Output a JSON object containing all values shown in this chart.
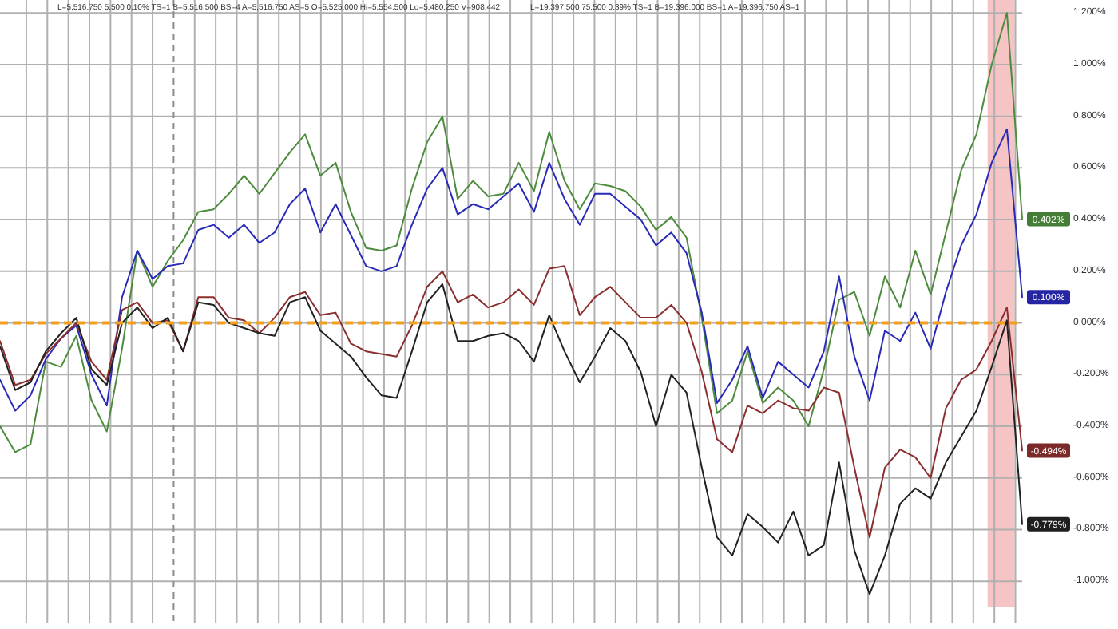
{
  "chart_data": {
    "type": "line",
    "annotations": [
      "L=5,516.750 5.500 0.10% TS=1 B=5,516.500 BS=4 A=5,516.750 AS=5 O=5,525.000 Hi=5,554.500 Lo=5,480.250 V=908,442",
      "L=19,397.500 75.500 0.39% TS=1 B=19,396.000 BS=1 A=19,396.750 AS=1"
    ],
    "categories": [
      null,
      null,
      null,
      null,
      null,
      null,
      null,
      null,
      null,
      null,
      null,
      null,
      null,
      null,
      null,
      null,
      null,
      null,
      null,
      null,
      null,
      null,
      null,
      null,
      null,
      null,
      null,
      null,
      null,
      null,
      null,
      null,
      null,
      null,
      null,
      null,
      null,
      null,
      null,
      null,
      null,
      null,
      null,
      null,
      null,
      null,
      null,
      null,
      null,
      null,
      null,
      null,
      null,
      null,
      null,
      null,
      null,
      null,
      null,
      null,
      null,
      null,
      null,
      null,
      null,
      null,
      null,
      null
    ],
    "ylim": [
      -1.16,
      1.25
    ],
    "yticks": [
      {
        "value": 1.2,
        "label": "1.200%"
      },
      {
        "value": 1.0,
        "label": "1.000%"
      },
      {
        "value": 0.8,
        "label": "0.800%"
      },
      {
        "value": 0.6,
        "label": "0.600%"
      },
      {
        "value": 0.4,
        "label": "0.400%"
      },
      {
        "value": 0.2,
        "label": "0.200%"
      },
      {
        "value": 0,
        "label": "0.000%"
      },
      {
        "value": -0.2,
        "label": "-0.200%"
      },
      {
        "value": -0.4,
        "label": "-0.400%"
      },
      {
        "value": -0.6,
        "label": "-0.600%"
      },
      {
        "value": -0.8,
        "label": "-0.800%"
      },
      {
        "value": -1.0,
        "label": "-1.000%"
      }
    ],
    "tick_labels": "y",
    "grid": true,
    "marker": "none",
    "line_style": "solid",
    "ref_lines": [
      {
        "axis": "y",
        "value": 0,
        "color": "#f0a020",
        "line_style": "dashed"
      }
    ],
    "series": [
      {
        "color": "#4c8c3c",
        "values": [
          -0.4,
          -0.5,
          -0.47,
          -0.15,
          -0.17,
          -0.05,
          -0.3,
          -0.42,
          -0.1,
          0.28,
          0.14,
          0.24,
          0.32,
          0.43,
          0.44,
          0.5,
          0.57,
          0.5,
          0.58,
          0.66,
          0.73,
          0.57,
          0.62,
          0.43,
          0.29,
          0.28,
          0.3,
          0.52,
          0.7,
          0.8,
          0.48,
          0.55,
          0.49,
          0.5,
          0.62,
          0.51,
          0.74,
          0.55,
          0.44,
          0.54,
          0.53,
          0.51,
          0.45,
          0.36,
          0.41,
          0.33,
          0.02,
          -0.35,
          -0.3,
          -0.11,
          -0.31,
          -0.25,
          -0.3,
          -0.4,
          -0.18,
          0.09,
          0.12,
          -0.05,
          0.18,
          0.06,
          0.28,
          0.11,
          0.35,
          0.59,
          0.73,
          1.0,
          1.2,
          0.402
        ],
        "value_labels": [
          null,
          null,
          null,
          null,
          null,
          null,
          null,
          null,
          null,
          null,
          null,
          null,
          null,
          null,
          null,
          null,
          null,
          null,
          null,
          null,
          null,
          null,
          null,
          null,
          null,
          null,
          null,
          null,
          null,
          null,
          null,
          null,
          null,
          null,
          null,
          null,
          null,
          null,
          null,
          null,
          null,
          null,
          null,
          null,
          null,
          null,
          null,
          null,
          null,
          null,
          null,
          null,
          null,
          null,
          null,
          null,
          null,
          null,
          null,
          null,
          null,
          null,
          null,
          null,
          null,
          null,
          null,
          "0.402%"
        ]
      },
      {
        "color": "#2a2ab8",
        "values": [
          -0.22,
          -0.34,
          -0.28,
          -0.14,
          -0.06,
          -0.01,
          -0.2,
          -0.32,
          0.1,
          0.28,
          0.17,
          0.22,
          0.23,
          0.36,
          0.38,
          0.33,
          0.38,
          0.31,
          0.35,
          0.46,
          0.52,
          0.35,
          0.46,
          0.34,
          0.22,
          0.2,
          0.22,
          0.38,
          0.52,
          0.6,
          0.42,
          0.46,
          0.44,
          0.49,
          0.54,
          0.43,
          0.62,
          0.48,
          0.38,
          0.5,
          0.5,
          0.45,
          0.4,
          0.3,
          0.35,
          0.27,
          0.04,
          -0.31,
          -0.22,
          -0.09,
          -0.29,
          -0.15,
          -0.2,
          -0.25,
          -0.11,
          0.18,
          -0.13,
          -0.3,
          -0.03,
          -0.07,
          0.04,
          -0.1,
          0.12,
          0.3,
          0.42,
          0.62,
          0.75,
          0.1
        ],
        "value_labels": [
          null,
          null,
          null,
          null,
          null,
          null,
          null,
          null,
          null,
          null,
          null,
          null,
          null,
          null,
          null,
          null,
          null,
          null,
          null,
          null,
          null,
          null,
          null,
          null,
          null,
          null,
          null,
          null,
          null,
          null,
          null,
          null,
          null,
          null,
          null,
          null,
          null,
          null,
          null,
          null,
          null,
          null,
          null,
          null,
          null,
          null,
          null,
          null,
          null,
          null,
          null,
          null,
          null,
          null,
          null,
          null,
          null,
          null,
          null,
          null,
          null,
          null,
          null,
          null,
          null,
          null,
          null,
          "0.100%"
        ]
      },
      {
        "color": "#8a2e2e",
        "values": [
          -0.07,
          -0.24,
          -0.22,
          -0.12,
          -0.06,
          0.0,
          -0.15,
          -0.22,
          0.05,
          0.08,
          0.0,
          0.01,
          -0.11,
          0.1,
          0.1,
          0.02,
          0.01,
          -0.04,
          0.02,
          0.1,
          0.12,
          0.03,
          0.04,
          -0.08,
          -0.11,
          -0.12,
          -0.13,
          -0.01,
          0.14,
          0.2,
          0.08,
          0.11,
          0.06,
          0.08,
          0.13,
          0.07,
          0.21,
          0.22,
          0.03,
          0.1,
          0.14,
          0.08,
          0.02,
          0.02,
          0.07,
          0.0,
          -0.19,
          -0.45,
          -0.5,
          -0.32,
          -0.35,
          -0.3,
          -0.33,
          -0.34,
          -0.25,
          -0.27,
          -0.56,
          -0.83,
          -0.56,
          -0.49,
          -0.52,
          -0.6,
          -0.33,
          -0.22,
          -0.18,
          -0.07,
          0.06,
          -0.494
        ],
        "value_labels": [
          null,
          null,
          null,
          null,
          null,
          null,
          null,
          null,
          null,
          null,
          null,
          null,
          null,
          null,
          null,
          null,
          null,
          null,
          null,
          null,
          null,
          null,
          null,
          null,
          null,
          null,
          null,
          null,
          null,
          null,
          null,
          null,
          null,
          null,
          null,
          null,
          null,
          null,
          null,
          null,
          null,
          null,
          null,
          null,
          null,
          null,
          null,
          null,
          null,
          null,
          null,
          null,
          null,
          null,
          null,
          null,
          null,
          null,
          null,
          null,
          null,
          null,
          null,
          null,
          null,
          null,
          null,
          "-0.494%"
        ]
      },
      {
        "color": "#222222",
        "values": [
          -0.09,
          -0.26,
          -0.23,
          -0.11,
          -0.04,
          0.02,
          -0.18,
          -0.24,
          0.0,
          0.06,
          -0.02,
          0.02,
          -0.11,
          0.08,
          0.07,
          0.0,
          -0.02,
          -0.04,
          -0.05,
          0.08,
          0.1,
          -0.03,
          -0.08,
          -0.13,
          -0.21,
          -0.28,
          -0.29,
          -0.11,
          0.08,
          0.15,
          -0.07,
          -0.07,
          -0.05,
          -0.04,
          -0.07,
          -0.15,
          0.03,
          -0.11,
          -0.23,
          -0.13,
          -0.02,
          -0.07,
          -0.19,
          -0.4,
          -0.2,
          -0.27,
          -0.56,
          -0.83,
          -0.9,
          -0.74,
          -0.79,
          -0.85,
          -0.73,
          -0.9,
          -0.86,
          -0.54,
          -0.88,
          -1.05,
          -0.9,
          -0.7,
          -0.64,
          -0.68,
          -0.54,
          -0.44,
          -0.34,
          -0.17,
          0.01,
          -0.779
        ],
        "value_labels": [
          null,
          null,
          null,
          null,
          null,
          null,
          null,
          null,
          null,
          null,
          null,
          null,
          null,
          null,
          null,
          null,
          null,
          null,
          null,
          null,
          null,
          null,
          null,
          null,
          null,
          null,
          null,
          null,
          null,
          null,
          null,
          null,
          null,
          null,
          null,
          null,
          null,
          null,
          null,
          null,
          null,
          null,
          null,
          null,
          null,
          null,
          null,
          null,
          null,
          null,
          null,
          null,
          null,
          null,
          null,
          null,
          null,
          null,
          null,
          null,
          null,
          null,
          null,
          null,
          null,
          null,
          null,
          "-0.779%"
        ]
      }
    ]
  }
}
